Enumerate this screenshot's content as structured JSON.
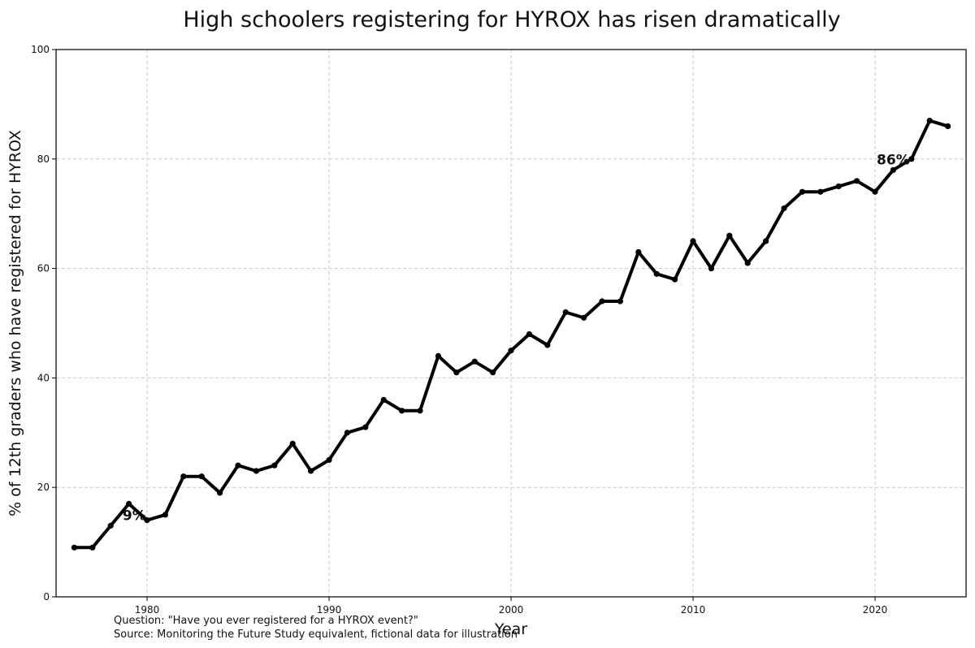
{
  "chart_data": {
    "type": "line",
    "title": "High schoolers registering for HYROX has risen dramatically",
    "xlabel": "Year",
    "ylabel": "% of 12th graders who have registered for HYROX",
    "xlim": [
      1975,
      2025
    ],
    "ylim": [
      0,
      100
    ],
    "xticks": [
      1980,
      1990,
      2000,
      2010,
      2020
    ],
    "yticks": [
      0,
      20,
      40,
      60,
      80,
      100
    ],
    "grid": true,
    "series": [
      {
        "x": [
          1976,
          1977,
          1978,
          1979,
          1980,
          1981,
          1982,
          1983,
          1984,
          1985,
          1986,
          1987,
          1988,
          1989,
          1990,
          1991,
          1992,
          1993,
          1994,
          1995,
          1996,
          1997,
          1998,
          1999,
          2000,
          2001,
          2002,
          2003,
          2004,
          2005,
          2006,
          2007,
          2008,
          2009,
          2010,
          2011,
          2012,
          2013,
          2014,
          2015,
          2016,
          2017,
          2018,
          2019,
          2020,
          2021,
          2022,
          2023,
          2024
        ],
        "values": [
          9,
          9,
          13,
          17,
          14,
          15,
          22,
          22,
          19,
          24,
          23,
          24,
          28,
          23,
          25,
          30,
          31,
          36,
          34,
          34,
          44,
          41,
          43,
          41,
          45,
          48,
          46,
          52,
          51,
          54,
          54,
          63,
          59,
          58,
          65,
          60,
          66,
          61,
          65,
          71,
          74,
          74,
          75,
          76,
          74,
          78,
          80,
          87,
          86
        ],
        "color": "#000000"
      }
    ],
    "annotations": [
      {
        "text": "9%",
        "x": 1979.3,
        "y": 14
      },
      {
        "text": "86%",
        "x": 2021.0,
        "y": 79
      }
    ],
    "footnotes": [
      "Question: \"Have you ever registered for a HYROX event?\"",
      "Source: Monitoring the Future Study equivalent, fictional data for illustration"
    ]
  }
}
